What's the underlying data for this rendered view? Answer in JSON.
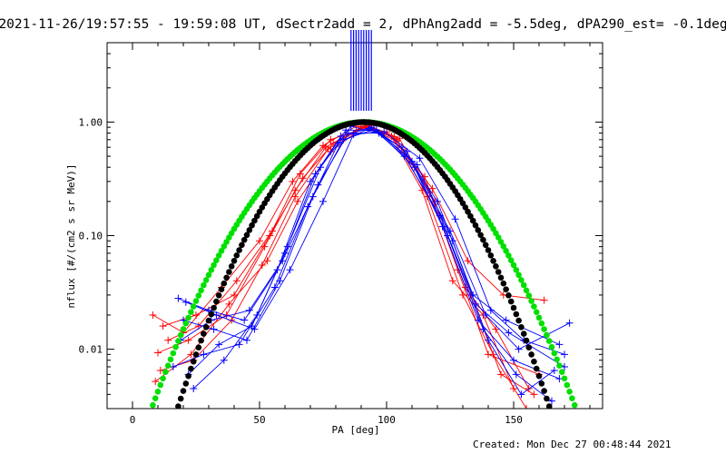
{
  "title": "2021-11-26/19:57:55 - 19:59:08 UT, dSectr2add = 2, dPhAng2add = -5.5deg, dPA290_est= -0.1deg",
  "footer": "Created: Mon Dec 27 00:48:44 2021",
  "chart_data": {
    "type": "line",
    "xlabel": "PA [deg]",
    "ylabel": "nflux [#/(cm2 s sr MeV)]",
    "xlim": [
      -10,
      185
    ],
    "ylim": [
      0.003,
      5
    ],
    "yscale": "log",
    "grid": false,
    "legend": "none",
    "xticks": [
      0,
      50,
      100,
      150
    ],
    "xtick_labels": [
      "0",
      "50",
      "100",
      "150"
    ],
    "yticks": [
      0.01,
      0.1,
      1.0
    ],
    "ytick_labels": [
      "0.01",
      "0.10",
      "1.00"
    ],
    "colors": {
      "red": "#ff0000",
      "blue": "#0000ff",
      "green": "#00e000",
      "black": "#000000"
    },
    "pa_markers": [
      86,
      87,
      88,
      89,
      90,
      91,
      92,
      93,
      94
    ],
    "fit_curves": [
      {
        "color": "green",
        "center": 91,
        "sigma": 24.5,
        "peak": 1.0
      },
      {
        "color": "black",
        "center": 91,
        "sigma": 21.5,
        "peak": 1.0
      }
    ],
    "series": [
      {
        "color": "red",
        "x": [
          8,
          20,
          35,
          50,
          63,
          75,
          88,
          100,
          115,
          128,
          140,
          160
        ],
        "y": [
          0.02,
          0.014,
          0.035,
          0.09,
          0.3,
          0.62,
          0.92,
          0.82,
          0.33,
          0.05,
          0.009,
          0.006
        ]
      },
      {
        "color": "red",
        "x": [
          10,
          22,
          37,
          52,
          64,
          76,
          90,
          102,
          114,
          126,
          138,
          150
        ],
        "y": [
          0.0093,
          0.012,
          0.02,
          0.08,
          0.25,
          0.6,
          0.9,
          0.75,
          0.25,
          0.04,
          0.02,
          0.0045
        ]
      },
      {
        "color": "red",
        "x": [
          9,
          23,
          38,
          53,
          65,
          78,
          92,
          104,
          116,
          130,
          142,
          155
        ],
        "y": [
          0.0052,
          0.009,
          0.025,
          0.06,
          0.2,
          0.55,
          0.95,
          0.7,
          0.22,
          0.03,
          0.009,
          0.003
        ]
      },
      {
        "color": "red",
        "x": [
          12,
          25,
          40,
          54,
          66,
          78,
          92,
          104,
          118,
          132,
          146,
          162
        ],
        "y": [
          0.016,
          0.02,
          0.03,
          0.1,
          0.35,
          0.7,
          0.9,
          0.68,
          0.26,
          0.06,
          0.03,
          0.027
        ]
      },
      {
        "color": "red",
        "x": [
          11,
          24,
          39,
          51,
          64,
          77,
          91,
          103,
          117,
          131,
          143,
          156
        ],
        "y": [
          0.0065,
          0.008,
          0.018,
          0.055,
          0.22,
          0.58,
          0.92,
          0.74,
          0.24,
          0.035,
          0.015,
          0.0045
        ]
      },
      {
        "color": "red",
        "x": [
          14,
          26,
          41,
          55,
          67,
          79,
          93,
          105,
          119,
          133,
          145,
          158
        ],
        "y": [
          0.012,
          0.016,
          0.04,
          0.11,
          0.32,
          0.65,
          0.93,
          0.72,
          0.2,
          0.03,
          0.006,
          0.004
        ]
      },
      {
        "color": "blue",
        "x": [
          18,
          30,
          44,
          57,
          70,
          82,
          93,
          106,
          120,
          134,
          147,
          168
        ],
        "y": [
          0.028,
          0.022,
          0.018,
          0.05,
          0.3,
          0.75,
          0.88,
          0.6,
          0.2,
          0.03,
          0.018,
          0.011
        ]
      },
      {
        "color": "blue",
        "x": [
          20,
          32,
          45,
          58,
          71,
          83,
          95,
          107,
          121,
          135,
          148,
          170
        ],
        "y": [
          0.018,
          0.015,
          0.012,
          0.04,
          0.22,
          0.7,
          0.86,
          0.5,
          0.15,
          0.025,
          0.014,
          0.007
        ]
      },
      {
        "color": "blue",
        "x": [
          16,
          28,
          42,
          56,
          69,
          81,
          94,
          108,
          122,
          136,
          150,
          168
        ],
        "y": [
          0.007,
          0.009,
          0.011,
          0.035,
          0.18,
          0.65,
          0.9,
          0.55,
          0.12,
          0.018,
          0.008,
          0.0055
        ]
      },
      {
        "color": "blue",
        "x": [
          22,
          34,
          47,
          60,
          72,
          84,
          96,
          110,
          124,
          138,
          151,
          165
        ],
        "y": [
          0.006,
          0.011,
          0.016,
          0.07,
          0.35,
          0.85,
          0.85,
          0.45,
          0.1,
          0.015,
          0.006,
          0.0035
        ]
      },
      {
        "color": "blue",
        "x": [
          19,
          31,
          46,
          59,
          73,
          85,
          97,
          111,
          125,
          139,
          152,
          172
        ],
        "y": [
          0.012,
          0.018,
          0.022,
          0.06,
          0.28,
          0.8,
          0.8,
          0.4,
          0.11,
          0.02,
          0.01,
          0.017
        ]
      },
      {
        "color": "blue",
        "x": [
          24,
          36,
          49,
          61,
          74,
          86,
          98,
          112,
          126,
          140,
          153,
          166
        ],
        "y": [
          0.0045,
          0.008,
          0.02,
          0.08,
          0.4,
          0.92,
          0.78,
          0.42,
          0.09,
          0.012,
          0.004,
          0.0065
        ]
      },
      {
        "color": "blue",
        "x": [
          21,
          33,
          48,
          62,
          75,
          87,
          99,
          113,
          127,
          141,
          154,
          170
        ],
        "y": [
          0.026,
          0.02,
          0.015,
          0.05,
          0.2,
          0.78,
          0.82,
          0.48,
          0.14,
          0.022,
          0.012,
          0.009
        ]
      }
    ]
  }
}
